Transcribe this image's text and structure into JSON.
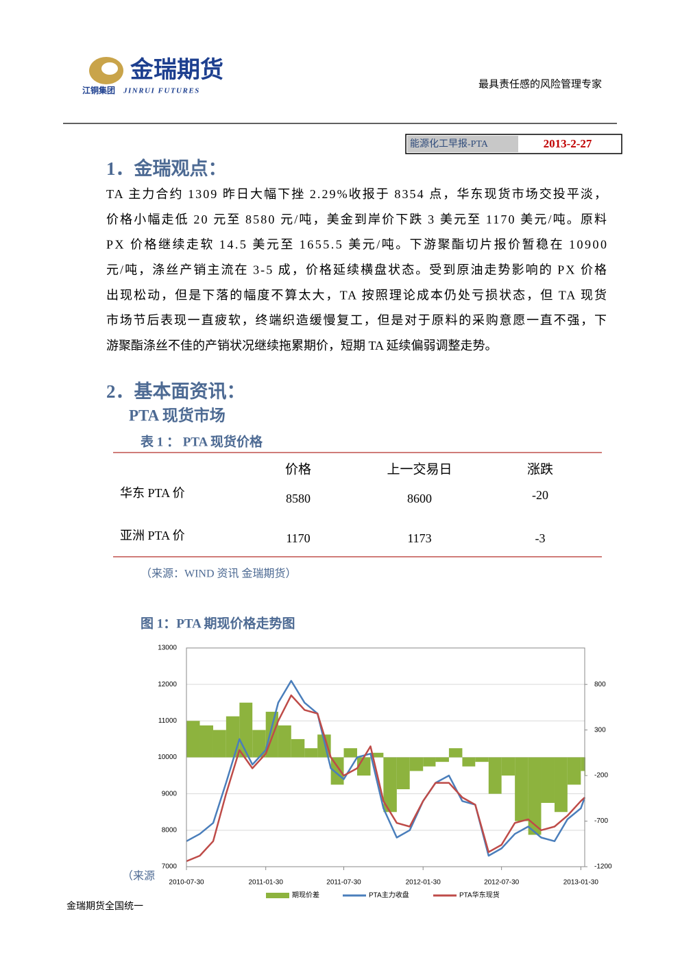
{
  "header": {
    "brand": "金瑞期货",
    "group": "江铜集团",
    "brand_en": "JINRUI FUTURES",
    "slogan": "最具责任感的风险管理专家",
    "report": "能源化工早报-PTA",
    "date": "2013-2-27"
  },
  "section_1": {
    "heading": "1．金瑞观点：",
    "lines": [
      "TA 主力合约 1309 昨日大幅下挫 2.29%收报于 8354 点，华东现货市场交投平淡，",
      "价格小幅走低 20 元至 8580 元/吨，美金到岸价下跌 3 美元至 1170 美元/吨。原料",
      "PX 价格继续走软 14.5 美元至 1655.5 美元/吨。下游聚酯切片报价暂稳在 10900",
      "元/吨，涤丝产销主流在 3-5 成，价格延续横盘状态。受到原油走势影响的 PX 价格",
      "出现松动，但是下落的幅度不算太大，TA 按照理论成本仍处亏损状态，但 TA 现货",
      "市场节后表现一直疲软，终端织造缓慢复工，但是对于原料的采购意愿一直不强，下",
      "游聚酯涤丝不佳的产销状况继续拖累期价，短期 TA 延续偏弱调整走势。"
    ]
  },
  "section_2": {
    "heading": "2．基本面资讯：",
    "subheading": "PTA 现货市场"
  },
  "table": {
    "title": "表 1 ： PTA 现货价格",
    "columns": [
      "价格",
      "上一交易日",
      "涨跌"
    ],
    "rows": [
      [
        "华东 PTA 价",
        8580,
        8600,
        -20
      ],
      [
        "亚洲 PTA 价",
        1170,
        1173,
        -3
      ]
    ],
    "source": "（来源：WIND 资讯  金瑞期货）"
  },
  "figure_title": "图 1：PTA 期现价格走势图",
  "figure_source": "（来源",
  "footer": "金瑞期货全国统一",
  "chart_data": {
    "type": "line",
    "x": [
      "2010-07-30",
      "2010-08-30",
      "2010-09-30",
      "2010-10-30",
      "2010-11-30",
      "2010-12-30",
      "2011-01-30",
      "2011-02-28",
      "2011-03-30",
      "2011-04-30",
      "2011-05-30",
      "2011-06-30",
      "2011-07-30",
      "2011-08-30",
      "2011-09-30",
      "2011-10-30",
      "2011-11-30",
      "2011-12-30",
      "2012-01-30",
      "2012-02-28",
      "2012-03-30",
      "2012-04-30",
      "2012-05-30",
      "2012-06-30",
      "2012-07-30",
      "2012-08-30",
      "2012-09-30",
      "2012-10-30",
      "2012-11-30",
      "2012-12-30",
      "2013-01-30",
      "2013-02-08"
    ],
    "xlim": [
      "2010-07-30",
      "2013-02-08"
    ],
    "xticks": [
      "2010-07-30",
      "2011-01-30",
      "2011-07-30",
      "2012-01-30",
      "2012-07-30",
      "2013-01-30"
    ],
    "ylim": [
      7000,
      13000
    ],
    "yticks": [
      7000,
      8000,
      9000,
      10000,
      11000,
      12000,
      13000
    ],
    "y2lim": [
      -1200,
      1200
    ],
    "y2ticks": [
      -1200,
      -700,
      -200,
      300,
      800
    ],
    "grid": true,
    "series": [
      {
        "name": "期现价差",
        "type": "area",
        "axis": "y2",
        "color": "#8db33e",
        "values": [
          400,
          350,
          300,
          450,
          600,
          300,
          500,
          350,
          200,
          100,
          250,
          -300,
          100,
          -200,
          50,
          -600,
          -350,
          -150,
          -100,
          -50,
          100,
          -100,
          -50,
          -400,
          -200,
          -700,
          -850,
          -500,
          -600,
          -300,
          -150,
          -200
        ]
      },
      {
        "name": "PTA主力收盘",
        "type": "line",
        "color": "#4a7ebb",
        "values": [
          7700,
          7900,
          8200,
          9300,
          10500,
          9800,
          10200,
          11500,
          12100,
          11500,
          11200,
          9700,
          9400,
          10000,
          10100,
          8600,
          7800,
          8000,
          8800,
          9300,
          9500,
          8800,
          8700,
          7300,
          7500,
          7900,
          8100,
          7800,
          7700,
          8300,
          8600,
          8900
        ]
      },
      {
        "name": "PTA华东现货",
        "type": "line",
        "color": "#be4b48",
        "values": [
          7150,
          7300,
          7700,
          9000,
          10200,
          9700,
          10100,
          11000,
          11700,
          11300,
          11200,
          10000,
          9500,
          9700,
          10300,
          8800,
          8200,
          8100,
          8800,
          9300,
          9300,
          8900,
          8700,
          7400,
          7600,
          8200,
          8300,
          8000,
          8100,
          8400,
          8800,
          8900
        ]
      }
    ]
  }
}
